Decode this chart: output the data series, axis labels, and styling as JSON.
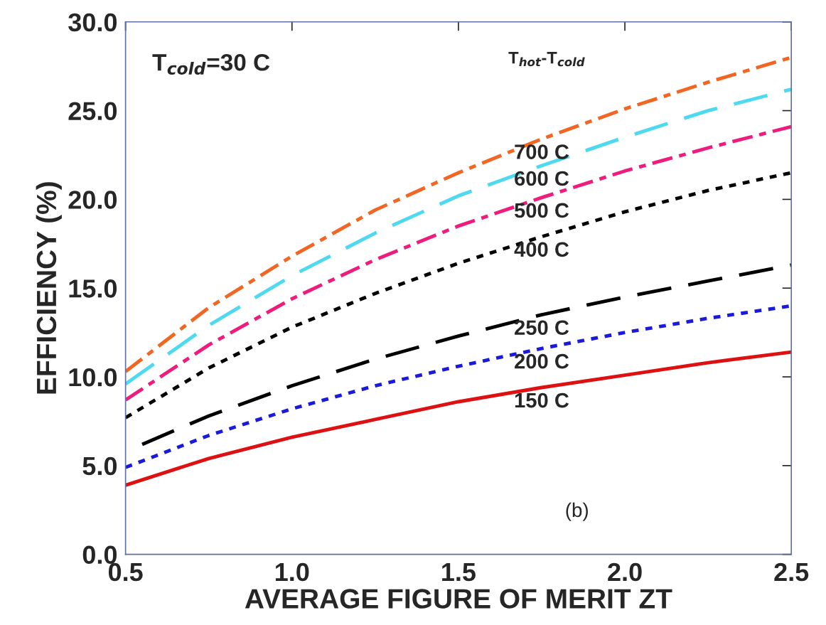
{
  "chart_data": {
    "type": "line",
    "xlabel": "AVERAGE FIGURE OF MERIT ZT",
    "ylabel": "EFFICIENCY (%)",
    "legend_title": "T$_{hot}$-T$_{cold}$",
    "annotations": [
      "T$_{cold}$=30 C",
      "(b)"
    ],
    "xlim": [
      0.5,
      2.5
    ],
    "ylim": [
      0,
      30
    ],
    "xticks": [
      0.5,
      {
        "value": 1,
        "label": "1.0"
      },
      1.5,
      {
        "value": 2,
        "label": "2.0"
      },
      2.5
    ],
    "yticks": [
      {
        "value": 0,
        "label": "0.0"
      },
      {
        "value": 5,
        "label": "5.0"
      },
      {
        "value": 10,
        "label": "10.0"
      },
      {
        "value": 15,
        "label": "15.0"
      },
      {
        "value": 20,
        "label": "20.0"
      },
      {
        "value": 25,
        "label": "25.0"
      },
      {
        "value": 30,
        "label": "30.0"
      }
    ],
    "grid": false,
    "legend": false,
    "x": [
      0.5,
      0.75,
      1.0,
      1.25,
      1.5,
      1.75,
      2.0,
      2.25,
      2.5
    ],
    "series": [
      {
        "name": "700 C",
        "color": "#f26522",
        "line_style": "dashdot",
        "values": [
          10.3,
          13.9,
          16.8,
          19.4,
          21.5,
          23.4,
          25.1,
          26.6,
          28.0
        ]
      },
      {
        "name": "600 C",
        "color": "#4dd9f0",
        "line_style": "dashed",
        "values": [
          9.6,
          12.9,
          15.7,
          18.1,
          20.2,
          21.9,
          23.5,
          25.0,
          26.2
        ]
      },
      {
        "name": "500 C",
        "color": "#ee1c7d",
        "line_style": "dashdot",
        "values": [
          8.7,
          11.8,
          14.4,
          16.6,
          18.5,
          20.1,
          21.6,
          22.9,
          24.1
        ]
      },
      {
        "name": "400 C",
        "color": "#000000",
        "line_style": "dotted",
        "values": [
          7.7,
          10.5,
          12.8,
          14.7,
          16.4,
          17.9,
          19.3,
          20.5,
          21.5
        ]
      },
      {
        "name": "250 C",
        "color": "#000000",
        "line_style": "dashed",
        "x": [
          0.55,
          0.75,
          1.0,
          1.25,
          1.5,
          1.75,
          2.0,
          2.25,
          2.5
        ],
        "values": [
          6.2,
          7.8,
          9.5,
          11.0,
          12.3,
          13.5,
          14.5,
          15.4,
          16.3
        ]
      },
      {
        "name": "200 C",
        "color": "#1a1adb",
        "line_style": "dotted",
        "values": [
          4.9,
          6.7,
          8.2,
          9.5,
          10.6,
          11.6,
          12.5,
          13.3,
          14.0
        ]
      },
      {
        "name": "150 C",
        "color": "#dd1111",
        "line_style": "solid",
        "values": [
          3.9,
          5.4,
          6.6,
          7.6,
          8.6,
          9.4,
          10.1,
          10.8,
          11.4
        ]
      }
    ]
  }
}
